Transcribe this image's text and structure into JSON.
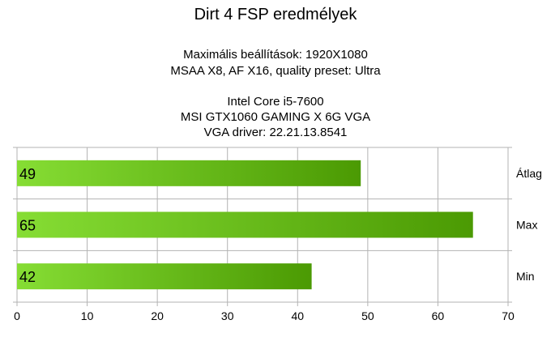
{
  "chart_data": {
    "type": "bar",
    "orientation": "horizontal",
    "title": "Dirt 4 FSP eredmélyek",
    "subtitle_lines": [
      "Maximális beállítások: 1920X1080",
      "MSAA X8, AF X16, quality preset: Ultra",
      "",
      "Intel Core i5-7600",
      "MSI GTX1060 GAMING X 6G VGA",
      "VGA driver: 22.21.13.8541"
    ],
    "categories": [
      "Átlag",
      "Max",
      "Min"
    ],
    "values": [
      49,
      65,
      42
    ],
    "xlim": [
      0,
      70
    ],
    "xticks": [
      0,
      10,
      20,
      30,
      40,
      50,
      60,
      70
    ],
    "grid": true,
    "legend": "none",
    "colors": {
      "bar_light": "#86dd34",
      "bar_dark": "#4b9a03",
      "grid": "#b3b3b3"
    }
  }
}
